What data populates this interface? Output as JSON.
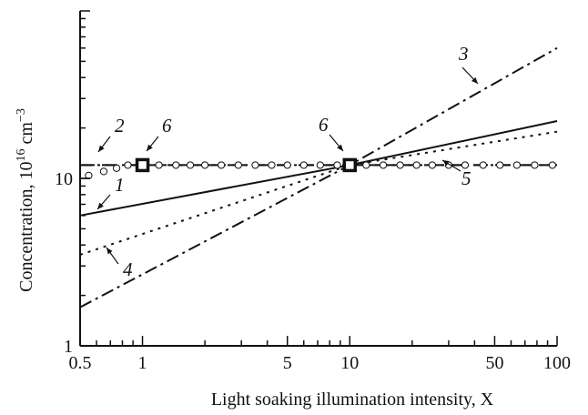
{
  "chart_data": {
    "type": "line",
    "xlabel": "Light soaking illumination intensity, X",
    "ylabel_main": "Concentration, 10",
    "ylabel_exp1": "16",
    "ylabel_unit": " cm",
    "ylabel_exp2": "−3",
    "xscale": "log",
    "yscale": "log",
    "xlim": [
      0.5,
      100
    ],
    "ylim": [
      1,
      100
    ],
    "x_ticks": [
      {
        "value": 0.5,
        "label": "0.5"
      },
      {
        "value": 1,
        "label": "1"
      },
      {
        "value": 5,
        "label": "5"
      },
      {
        "value": 10,
        "label": "10"
      },
      {
        "value": 50,
        "label": "50"
      },
      {
        "value": 100,
        "label": "100"
      }
    ],
    "y_ticks": [
      {
        "value": 1,
        "label": "1"
      },
      {
        "value": 10,
        "label": "10"
      }
    ],
    "grid": false,
    "legend": "none",
    "series": [
      {
        "label": "1",
        "style": "solid",
        "x": [
          0.5,
          10,
          100
        ],
        "y": [
          6.0,
          12.0,
          22.0
        ]
      },
      {
        "label": "2",
        "style": "dashed",
        "x": [
          0.5,
          100
        ],
        "y": [
          12.0,
          12.0
        ]
      },
      {
        "label": "3",
        "style": "dash-dot",
        "x": [
          0.5,
          10,
          100
        ],
        "y": [
          1.7,
          12.0,
          60.0
        ]
      },
      {
        "label": "4",
        "style": "dotted",
        "x": [
          0.5,
          10,
          100
        ],
        "y": [
          3.5,
          12.0,
          19.0
        ]
      },
      {
        "label": "5",
        "style": "dash-dot",
        "x": [
          0.5,
          100
        ],
        "y": [
          12.0,
          12.0
        ]
      }
    ],
    "markers": [
      {
        "label": "6",
        "shape": "square-open",
        "x": 1,
        "y": 12.0
      },
      {
        "label": "6",
        "shape": "square-open",
        "x": 10,
        "y": 12.0
      }
    ],
    "circles": {
      "x": [
        0.55,
        0.65,
        0.75,
        0.85,
        1.2,
        1.45,
        1.7,
        2.0,
        2.4,
        2.9,
        3.5,
        4.2,
        5.0,
        6.0,
        7.2,
        8.7,
        12,
        14.5,
        17.5,
        21,
        25,
        30,
        36,
        44,
        53,
        64,
        78,
        95
      ],
      "y": [
        10.4,
        11.0,
        11.5,
        12.0,
        12.0,
        12.0,
        12.0,
        12.0,
        12.0,
        12.0,
        12.0,
        12.0,
        12.0,
        12.0,
        12.0,
        12.0,
        12.0,
        12.0,
        12.0,
        12.0,
        12.0,
        12.0,
        12.0,
        12.0,
        12.0,
        12.0,
        12.0,
        12.0
      ]
    }
  }
}
